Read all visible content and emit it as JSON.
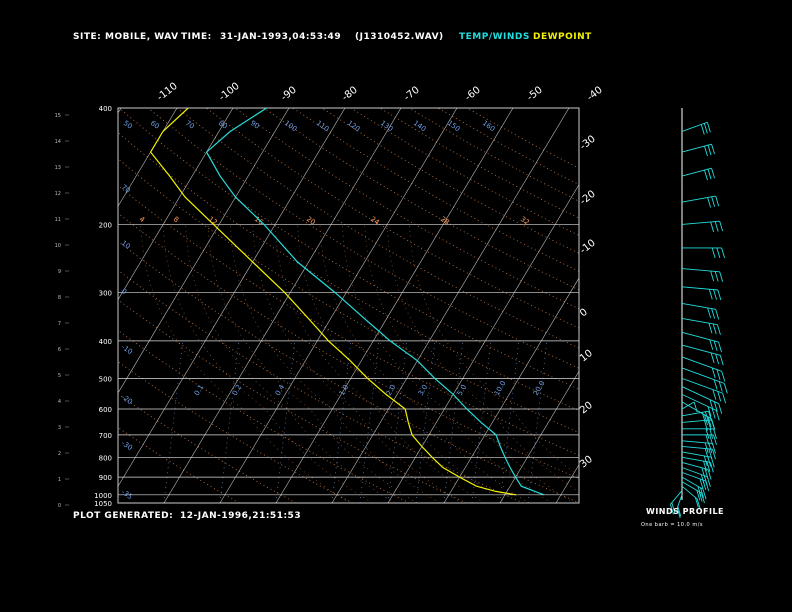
{
  "header": {
    "site_label": "SITE:",
    "site_value": "MOBILE, WAV",
    "time_label": "TIME:",
    "time_value": "31-JAN-1993,04:53:49",
    "file_value": "(J1310452.WAV)",
    "legend_temp": "TEMP/WINDS",
    "legend_dew": "DEWPOINT"
  },
  "footer": {
    "plot_label": "PLOT GENERATED:",
    "plot_value": "12-JAN-1996,21:51:53",
    "winds_title": "WINDS PROFILE",
    "winds_note": "One barb = 10.0 m/s"
  },
  "colors": {
    "temp": "#22dddd",
    "dew": "#f2f200",
    "isotherm": "#dddddd",
    "isobar": "#dddddd",
    "adiabat": "#ffa060",
    "mixing": "#6f9fe6"
  },
  "chart_data": {
    "type": "skew-t",
    "pressure_ticks": [
      "400",
      "200",
      "300",
      "400",
      "500",
      "600",
      "700",
      "800",
      "900",
      "1000",
      "1050"
    ],
    "height_ticks": [
      "15",
      "14",
      "13",
      "12",
      "11",
      "10",
      "9",
      "8",
      "7",
      "6",
      "5",
      "4",
      "3",
      "2",
      "1",
      "0"
    ],
    "top_temp_labels": [
      "-110",
      "-100",
      "-90",
      "-80",
      "-70",
      "-60",
      "-50",
      "-40"
    ],
    "right_temp_labels": [
      "-30",
      "-20",
      "-10",
      "0",
      "10",
      "20",
      "30"
    ],
    "dry_adiabat_labels": [
      "50",
      "60",
      "70",
      "80",
      "90",
      "100",
      "110",
      "120",
      "130",
      "140",
      "150",
      "160"
    ],
    "moist_adiabat_labels": [
      "4",
      "8",
      "12",
      "16",
      "20",
      "24",
      "28",
      "32"
    ],
    "mixing_ratio_labels": [
      "0.1",
      "0.2",
      "0.4",
      "1.0",
      "2.0",
      "3.0",
      "5.0",
      "10.0",
      "20.0"
    ],
    "temperature": [
      {
        "p": 1000,
        "t": 27
      },
      {
        "p": 980,
        "t": 25
      },
      {
        "p": 950,
        "t": 22
      },
      {
        "p": 900,
        "t": 20
      },
      {
        "p": 850,
        "t": 18
      },
      {
        "p": 800,
        "t": 16
      },
      {
        "p": 750,
        "t": 14
      },
      {
        "p": 700,
        "t": 12
      },
      {
        "p": 650,
        "t": 8
      },
      {
        "p": 600,
        "t": 4
      },
      {
        "p": 550,
        "t": 0
      },
      {
        "p": 500,
        "t": -5
      },
      {
        "p": 450,
        "t": -10
      },
      {
        "p": 400,
        "t": -17
      },
      {
        "p": 350,
        "t": -24
      },
      {
        "p": 300,
        "t": -32
      },
      {
        "p": 250,
        "t": -42
      },
      {
        "p": 200,
        "t": -52
      },
      {
        "p": 170,
        "t": -60
      },
      {
        "p": 150,
        "t": -65
      },
      {
        "p": 130,
        "t": -70
      },
      {
        "p": 115,
        "t": -68
      },
      {
        "p": 100,
        "t": -64
      }
    ],
    "dewpoint": [
      {
        "p": 1000,
        "t": 22
      },
      {
        "p": 980,
        "t": 18
      },
      {
        "p": 950,
        "t": 14
      },
      {
        "p": 900,
        "t": 10
      },
      {
        "p": 850,
        "t": 6
      },
      {
        "p": 800,
        "t": 3
      },
      {
        "p": 750,
        "t": 0
      },
      {
        "p": 700,
        "t": -3
      },
      {
        "p": 650,
        "t": -5
      },
      {
        "p": 600,
        "t": -7
      },
      {
        "p": 550,
        "t": -12
      },
      {
        "p": 500,
        "t": -17
      },
      {
        "p": 450,
        "t": -22
      },
      {
        "p": 400,
        "t": -28
      },
      {
        "p": 350,
        "t": -34
      },
      {
        "p": 300,
        "t": -41
      },
      {
        "p": 250,
        "t": -50
      },
      {
        "p": 200,
        "t": -61
      },
      {
        "p": 170,
        "t": -69
      },
      {
        "p": 150,
        "t": -74
      },
      {
        "p": 130,
        "t": -80
      },
      {
        "p": 115,
        "t": -80
      },
      {
        "p": 100,
        "t": -78
      }
    ],
    "winds": [
      {
        "p": 1000,
        "dir": 200,
        "spd": 15
      },
      {
        "p": 975,
        "dir": 220,
        "spd": 20
      },
      {
        "p": 950,
        "dir": 230,
        "spd": 22
      },
      {
        "p": 925,
        "dir": 240,
        "spd": 25
      },
      {
        "p": 900,
        "dir": 240,
        "spd": 27
      },
      {
        "p": 875,
        "dir": 250,
        "spd": 28
      },
      {
        "p": 850,
        "dir": 250,
        "spd": 30
      },
      {
        "p": 825,
        "dir": 255,
        "spd": 30
      },
      {
        "p": 800,
        "dir": 260,
        "spd": 32
      },
      {
        "p": 775,
        "dir": 260,
        "spd": 33
      },
      {
        "p": 750,
        "dir": 265,
        "spd": 34
      },
      {
        "p": 725,
        "dir": 265,
        "spd": 34
      },
      {
        "p": 700,
        "dir": 270,
        "spd": 35
      },
      {
        "p": 675,
        "dir": 270,
        "spd": 35
      },
      {
        "p": 650,
        "dir": 275,
        "spd": 33
      },
      {
        "p": 625,
        "dir": 280,
        "spd": 30
      },
      {
        "p": 600,
        "dir": 300,
        "spd": 12
      },
      {
        "p": 575,
        "dir": 240,
        "spd": 38
      },
      {
        "p": 550,
        "dir": 245,
        "spd": 42
      },
      {
        "p": 525,
        "dir": 245,
        "spd": 45
      },
      {
        "p": 500,
        "dir": 250,
        "spd": 48
      },
      {
        "p": 470,
        "dir": 250,
        "spd": 50
      },
      {
        "p": 440,
        "dir": 250,
        "spd": 47
      },
      {
        "p": 410,
        "dir": 255,
        "spd": 44
      },
      {
        "p": 380,
        "dir": 255,
        "spd": 42
      },
      {
        "p": 350,
        "dir": 260,
        "spd": 40
      },
      {
        "p": 320,
        "dir": 260,
        "spd": 38
      },
      {
        "p": 290,
        "dir": 265,
        "spd": 40
      },
      {
        "p": 260,
        "dir": 265,
        "spd": 42
      },
      {
        "p": 230,
        "dir": 270,
        "spd": 44
      },
      {
        "p": 200,
        "dir": 275,
        "spd": 42
      },
      {
        "p": 175,
        "dir": 280,
        "spd": 38
      },
      {
        "p": 150,
        "dir": 285,
        "spd": 34
      },
      {
        "p": 130,
        "dir": 285,
        "spd": 34
      },
      {
        "p": 115,
        "dir": 290,
        "spd": 30
      }
    ]
  }
}
